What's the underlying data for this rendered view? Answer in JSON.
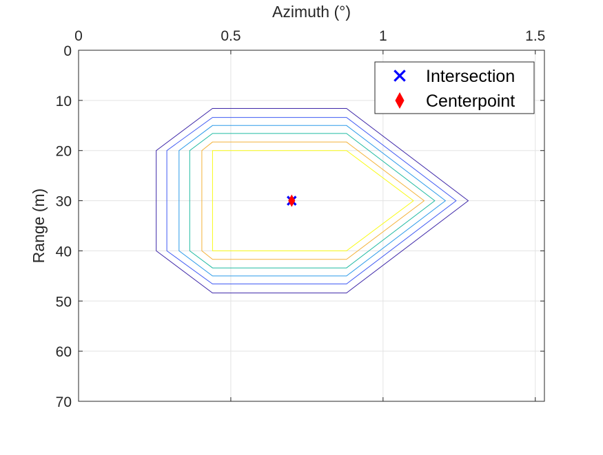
{
  "chart_data": {
    "type": "contour",
    "x_axis": {
      "label": "Azimuth (°)",
      "position": "top",
      "lim": [
        0,
        1.53
      ],
      "ticks": [
        0,
        0.5,
        1,
        1.5
      ],
      "tick_labels": [
        "0",
        "0.5",
        "1",
        "1.5"
      ]
    },
    "y_axis": {
      "label": "Range (m)",
      "reversed": true,
      "lim": [
        0,
        70
      ],
      "ticks": [
        0,
        10,
        20,
        30,
        40,
        50,
        60,
        70
      ],
      "tick_labels": [
        "0",
        "10",
        "20",
        "30",
        "40",
        "50",
        "60",
        "70"
      ]
    },
    "grid": true,
    "legend": {
      "placement": "top-right",
      "entries": [
        {
          "label": "Intersection",
          "marker": "x",
          "color": "#0000ff"
        },
        {
          "label": "Centerpoint",
          "marker": "diamond",
          "color": "#ff0000"
        }
      ]
    },
    "contours": [
      {
        "color": "#3d26a8",
        "points": [
          [
            0.44,
            11.6
          ],
          [
            0.88,
            11.6
          ],
          [
            1.28,
            30
          ],
          [
            0.88,
            48.4
          ],
          [
            0.44,
            48.4
          ],
          [
            0.255,
            40
          ],
          [
            0.255,
            20
          ]
        ]
      },
      {
        "color": "#3f59f3",
        "points": [
          [
            0.44,
            13.4
          ],
          [
            0.88,
            13.4
          ],
          [
            1.24,
            30
          ],
          [
            0.88,
            46.6
          ],
          [
            0.44,
            46.6
          ],
          [
            0.29,
            40
          ],
          [
            0.29,
            20
          ]
        ]
      },
      {
        "color": "#2b9ae9",
        "points": [
          [
            0.44,
            15.0
          ],
          [
            0.88,
            15.0
          ],
          [
            1.205,
            30
          ],
          [
            0.88,
            45.0
          ],
          [
            0.44,
            45.0
          ],
          [
            0.33,
            40
          ],
          [
            0.33,
            20
          ]
        ]
      },
      {
        "color": "#1fbaa2",
        "points": [
          [
            0.44,
            16.6
          ],
          [
            0.88,
            16.6
          ],
          [
            1.17,
            30
          ],
          [
            0.88,
            43.4
          ],
          [
            0.44,
            43.4
          ],
          [
            0.365,
            40
          ],
          [
            0.365,
            20
          ]
        ]
      },
      {
        "color": "#f4b23a",
        "points": [
          [
            0.44,
            18.3
          ],
          [
            0.88,
            18.3
          ],
          [
            1.135,
            30
          ],
          [
            0.88,
            41.7
          ],
          [
            0.44,
            41.7
          ],
          [
            0.405,
            40
          ],
          [
            0.405,
            20
          ]
        ]
      },
      {
        "color": "#f9fb14",
        "points": [
          [
            0.44,
            20.0
          ],
          [
            0.88,
            20.0
          ],
          [
            1.1,
            30
          ],
          [
            0.88,
            40.0
          ],
          [
            0.44,
            40.0
          ],
          [
            0.44,
            40
          ],
          [
            0.44,
            20
          ]
        ]
      }
    ],
    "markers": [
      {
        "series": "Intersection",
        "x": 0.7,
        "y": 30,
        "color": "#0000ff"
      },
      {
        "series": "Centerpoint",
        "x": 0.7,
        "y": 30,
        "color": "#ff0000"
      }
    ]
  }
}
